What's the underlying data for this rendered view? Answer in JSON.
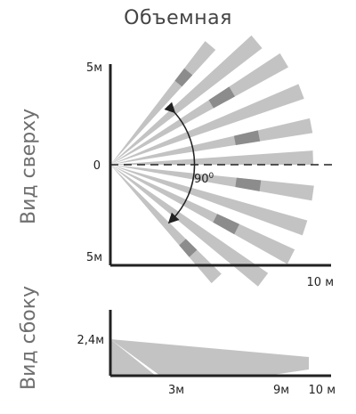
{
  "title": "Объемная",
  "top_view": {
    "label": "Вид сверху",
    "y_top": "5м",
    "y_zero": "0",
    "y_bottom": "5м",
    "x_end": "10 м",
    "angle": "90",
    "angle_unit": "0"
  },
  "side_view": {
    "label": "Вид сбоку",
    "height": "2,4м",
    "x_3m": "3м",
    "x_9m": "9м",
    "x_10m": "10 м"
  },
  "colors": {
    "zone_light": "#c3c3c3",
    "zone_dark": "#8c8c8c",
    "axis": "#222222"
  }
}
